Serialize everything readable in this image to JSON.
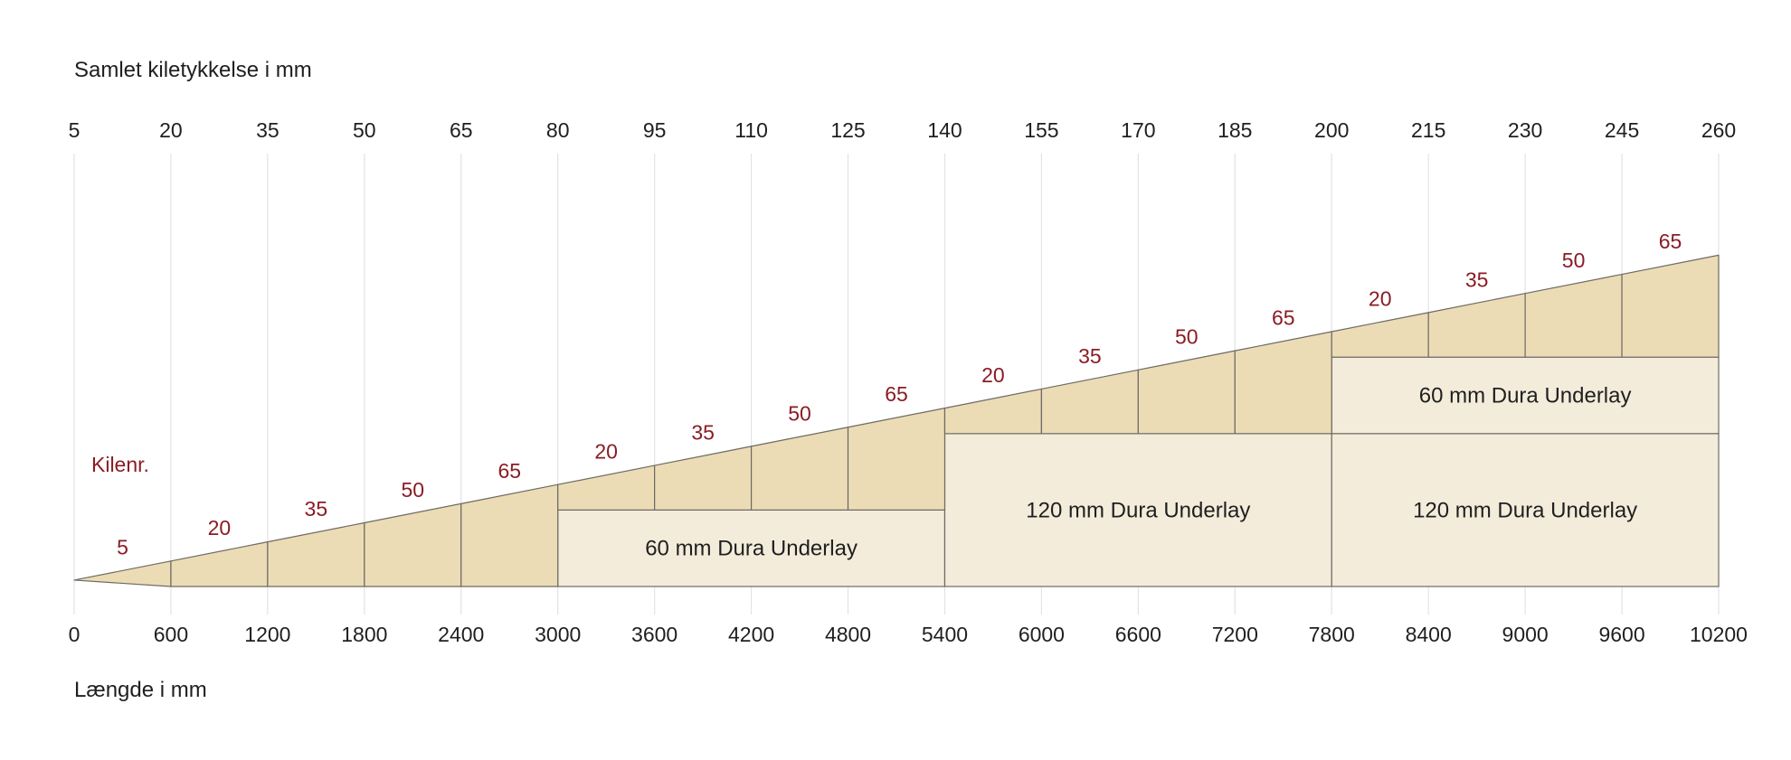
{
  "top_axis": {
    "title": "Samlet kiletykkelse i mm",
    "ticks": [
      "5",
      "20",
      "35",
      "50",
      "65",
      "80",
      "95",
      "110",
      "125",
      "140",
      "155",
      "170",
      "185",
      "200",
      "215",
      "230",
      "245",
      "260"
    ]
  },
  "bottom_axis": {
    "title": "Længde i mm",
    "ticks": [
      "0",
      "600",
      "1200",
      "1800",
      "2400",
      "3000",
      "3600",
      "4200",
      "4800",
      "5400",
      "6000",
      "6600",
      "7200",
      "7800",
      "8400",
      "9000",
      "9600",
      "10200"
    ]
  },
  "kile_label": "Kilenr.",
  "chart_data": {
    "type": "diagram",
    "title": "Samlet kiletykkelse i mm",
    "xlabel": "Længde i mm",
    "length_range_mm": [
      0,
      10200
    ],
    "total_thickness_range_mm": [
      5,
      260
    ],
    "segment_length_mm": 600,
    "wedges": [
      {
        "start": 0,
        "end": 600,
        "label": "5"
      },
      {
        "start": 600,
        "end": 1200,
        "label": "20"
      },
      {
        "start": 1200,
        "end": 1800,
        "label": "35"
      },
      {
        "start": 1800,
        "end": 2400,
        "label": "50"
      },
      {
        "start": 2400,
        "end": 3000,
        "label": "65"
      },
      {
        "start": 3000,
        "end": 3600,
        "label": "20"
      },
      {
        "start": 3600,
        "end": 4200,
        "label": "35"
      },
      {
        "start": 4200,
        "end": 4800,
        "label": "50"
      },
      {
        "start": 4800,
        "end": 5400,
        "label": "65"
      },
      {
        "start": 5400,
        "end": 6000,
        "label": "20"
      },
      {
        "start": 6000,
        "end": 6600,
        "label": "35"
      },
      {
        "start": 6600,
        "end": 7200,
        "label": "50"
      },
      {
        "start": 7200,
        "end": 7800,
        "label": "65"
      },
      {
        "start": 7800,
        "end": 8400,
        "label": "20"
      },
      {
        "start": 8400,
        "end": 9000,
        "label": "35"
      },
      {
        "start": 9000,
        "end": 9600,
        "label": "50"
      },
      {
        "start": 9600,
        "end": 10200,
        "label": "65"
      }
    ],
    "underlays": [
      {
        "start": 3000,
        "end": 5400,
        "bottom_mm": 0,
        "thickness_mm": 60,
        "label": "60 mm Dura Underlay"
      },
      {
        "start": 5400,
        "end": 7800,
        "bottom_mm": 0,
        "thickness_mm": 120,
        "label": "120 mm Dura Underlay"
      },
      {
        "start": 7800,
        "end": 10200,
        "bottom_mm": 0,
        "thickness_mm": 120,
        "label": "120 mm Dura Underlay"
      },
      {
        "start": 7800,
        "end": 10200,
        "bottom_mm": 120,
        "thickness_mm": 60,
        "label": "60 mm Dura Underlay"
      }
    ]
  },
  "colors": {
    "wedge_fill": "#ebdcb6",
    "underlay_fill": "#f4ecdb",
    "outline": "#6e6a64",
    "grid": "#e3e3e3",
    "kile_text": "#8a1c24",
    "text": "#1f1f1f"
  }
}
